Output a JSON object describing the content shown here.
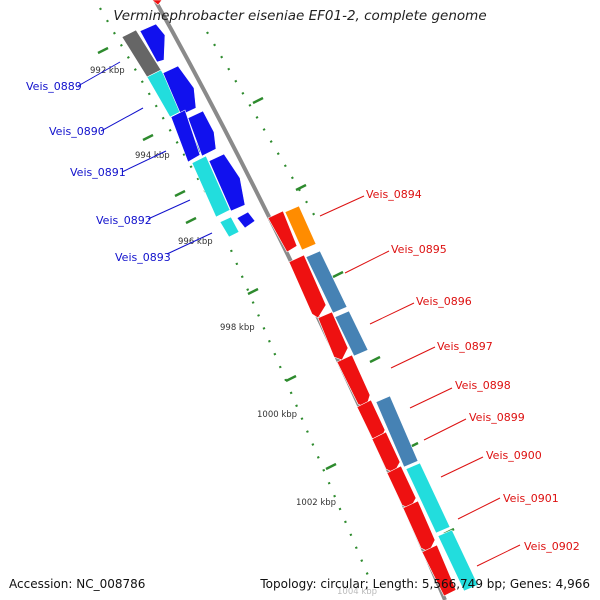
{
  "title": "Verminephrobacter eiseniae EF01-2, complete genome",
  "accession_text": "Accession: NC_008786",
  "summary_text": "Topology: circular; Length: 5,566,749 bp; Genes: 4,966",
  "colors": {
    "backbone": "#8a8a8a",
    "tick_line": "#2e8b2e",
    "tick_dot": "#2e8b2e",
    "forward_label": "#1111cc",
    "reverse_label": "#dd1111",
    "cds_blue": "#1111ee",
    "cds_red": "#ee1111",
    "gene_cyan": "#22dddd",
    "gene_steel": "#4682b4",
    "gene_gray": "#666666",
    "gene_orange": "#ff8c00"
  },
  "scale_labels": [
    {
      "kbp": 992,
      "text": "992 kbp"
    },
    {
      "kbp": 994,
      "text": "994 kbp"
    },
    {
      "kbp": 996,
      "text": "996 kbp"
    },
    {
      "kbp": 998,
      "text": "998 kbp"
    },
    {
      "kbp": 1000,
      "text": "1000 kbp"
    },
    {
      "kbp": 1002,
      "text": "1002 kbp"
    },
    {
      "kbp": 1004,
      "text": "1004 kbp"
    }
  ],
  "forward_genes": [
    {
      "name": "Veis_0889"
    },
    {
      "name": "Veis_0890"
    },
    {
      "name": "Veis_0891"
    },
    {
      "name": "Veis_0892"
    },
    {
      "name": "Veis_0893"
    }
  ],
  "reverse_genes": [
    {
      "name": "Veis_0894"
    },
    {
      "name": "Veis_0895"
    },
    {
      "name": "Veis_0896"
    },
    {
      "name": "Veis_0897"
    },
    {
      "name": "Veis_0898"
    },
    {
      "name": "Veis_0899"
    },
    {
      "name": "Veis_0900"
    },
    {
      "name": "Veis_0901"
    },
    {
      "name": "Veis_0902"
    }
  ]
}
